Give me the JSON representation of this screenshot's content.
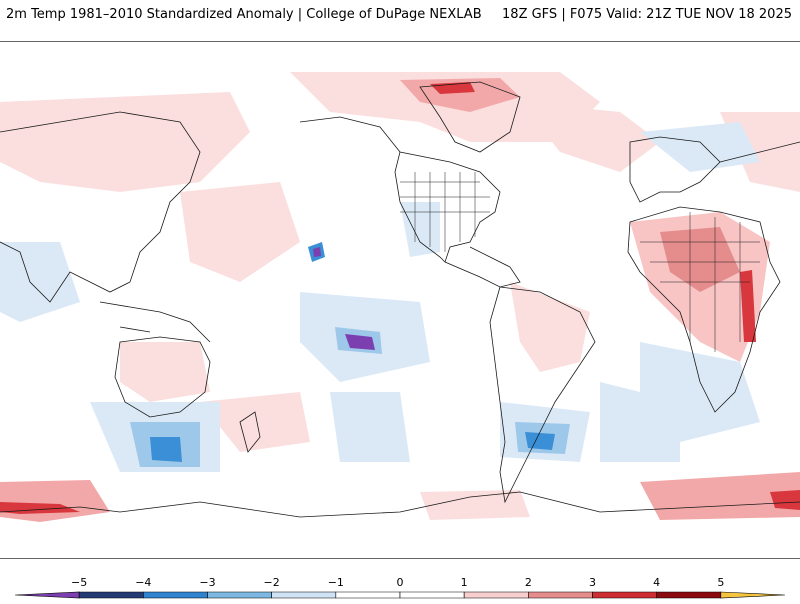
{
  "header": {
    "title_left": "2m Temp 1981–2010 Standardized Anomaly | College of DuPage NEXLAB",
    "title_right": "18Z GFS | F075 Valid: 21Z TUE NOV 18 2025"
  },
  "legend": {
    "ticks": [
      "−5",
      "−4",
      "−3",
      "−2",
      "−1",
      "0",
      "1",
      "2",
      "3",
      "4",
      "5"
    ],
    "tick_values": [
      -5,
      -4,
      -3,
      -2,
      -1,
      0,
      1,
      2,
      3,
      4,
      5
    ],
    "range": [
      -6,
      6
    ],
    "colors": [
      "#7b3fb0",
      "#233a74",
      "#2f83cf",
      "#7db8e2",
      "#cfe3f4",
      "#ffffff",
      "#ffffff",
      "#f7cfcf",
      "#e58d8d",
      "#cd2e33",
      "#8a0a10",
      "#f5c542"
    ]
  },
  "map": {
    "palette": {
      "light_red": "#fbdede",
      "med_red": "#f2a8a8",
      "red": "#d8383d",
      "dark_red": "#8a0a10",
      "light_blue": "#dbe9f7",
      "med_blue": "#9ec8ea",
      "blue": "#3a8fd6",
      "dark_blue": "#233a74",
      "purple": "#7b3fb0",
      "coast": "#1a1a1a"
    }
  }
}
